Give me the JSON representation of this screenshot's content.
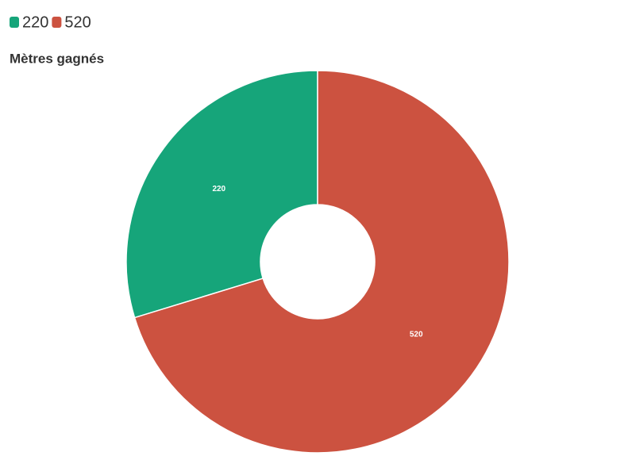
{
  "chart_data": {
    "type": "donut",
    "title": "Mètres gagnés",
    "categories": [
      "220",
      "520"
    ],
    "values": [
      220,
      520
    ],
    "colors": [
      "#16a57a",
      "#cc5240"
    ],
    "legend": "top-left"
  }
}
